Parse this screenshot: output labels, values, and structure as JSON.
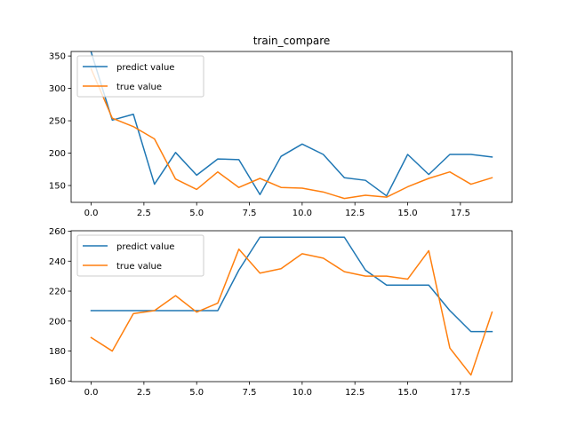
{
  "chart_data": [
    {
      "type": "line",
      "title": "train_compare",
      "xlabel": "",
      "ylabel": "",
      "x": [
        0,
        1,
        2,
        3,
        4,
        5,
        6,
        7,
        8,
        9,
        10,
        11,
        12,
        13,
        14,
        15,
        16,
        17,
        18,
        19
      ],
      "xlim": [
        -0.95,
        19.95
      ],
      "ylim": [
        124,
        357
      ],
      "xticks": [
        0,
        2.5,
        5,
        7.5,
        10,
        12.5,
        15,
        17.5
      ],
      "xtick_labels": [
        "0.0",
        "2.5",
        "5.0",
        "7.5",
        "10.0",
        "12.5",
        "15.0",
        "17.5"
      ],
      "yticks": [
        150,
        200,
        250,
        300,
        350
      ],
      "ytick_labels": [
        "150",
        "200",
        "250",
        "300",
        "350"
      ],
      "legend_position": "upper-left",
      "series": [
        {
          "name": "predict value",
          "color": "#1f77b4",
          "values": [
            356,
            251,
            260,
            152,
            201,
            166,
            191,
            190,
            136,
            195,
            214,
            198,
            162,
            158,
            134,
            198,
            167,
            198,
            198,
            194
          ]
        },
        {
          "name": "true value",
          "color": "#ff7f0e",
          "values": [
            330,
            254,
            241,
            222,
            160,
            144,
            171,
            147,
            161,
            147,
            146,
            140,
            130,
            135,
            132,
            148,
            161,
            171,
            152,
            162
          ]
        }
      ]
    },
    {
      "type": "line",
      "title": "",
      "xlabel": "",
      "ylabel": "",
      "x": [
        0,
        1,
        2,
        3,
        4,
        5,
        6,
        7,
        8,
        9,
        10,
        11,
        12,
        13,
        14,
        15,
        16,
        17,
        18,
        19
      ],
      "xlim": [
        -0.95,
        19.95
      ],
      "ylim": [
        159.6,
        260.3
      ],
      "xticks": [
        0,
        2.5,
        5,
        7.5,
        10,
        12.5,
        15,
        17.5
      ],
      "xtick_labels": [
        "0.0",
        "2.5",
        "5.0",
        "7.5",
        "10.0",
        "12.5",
        "15.0",
        "17.5"
      ],
      "yticks": [
        160,
        180,
        200,
        220,
        240,
        260
      ],
      "ytick_labels": [
        "160",
        "180",
        "200",
        "220",
        "240",
        "260"
      ],
      "legend_position": "upper-left",
      "series": [
        {
          "name": "predict value",
          "color": "#1f77b4",
          "values": [
            207,
            207,
            207,
            207,
            207,
            207,
            207,
            234,
            256,
            256,
            256,
            256,
            256,
            234,
            224,
            224,
            224,
            207,
            193,
            193
          ]
        },
        {
          "name": "true value",
          "color": "#ff7f0e",
          "values": [
            189,
            180,
            205,
            207,
            217,
            206,
            212,
            248,
            232,
            235,
            245,
            242,
            233,
            230,
            230,
            228,
            247,
            182,
            164,
            206
          ]
        }
      ]
    }
  ]
}
